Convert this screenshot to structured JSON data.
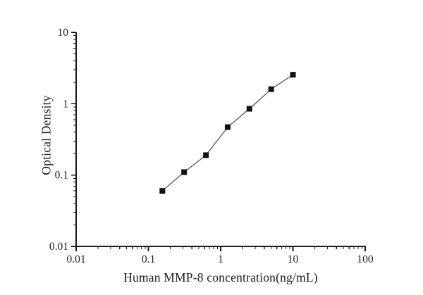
{
  "figure": {
    "background": "#ffffff",
    "text_color": "#1a1a1a"
  },
  "chart_data": {
    "type": "line",
    "x": [
      0.156,
      0.312,
      0.625,
      1.25,
      2.5,
      5,
      10
    ],
    "values": [
      0.06,
      0.11,
      0.19,
      0.47,
      0.85,
      1.6,
      2.55
    ],
    "xlabel": "Human MMP-8 concentration(ng/mL)",
    "ylabel": "Optical Density",
    "xlim": [
      0.01,
      100
    ],
    "ylim": [
      0.01,
      10
    ],
    "xscale": "log",
    "yscale": "log",
    "x_tick_labels": [
      "0.01",
      "0.1",
      "1",
      "10",
      "100"
    ],
    "y_tick_labels": [
      "0.01",
      "0.1",
      "1",
      "10"
    ],
    "grid": false,
    "legend": false,
    "marker": "filled-square",
    "colors": {
      "marker": "#111111",
      "line": "#4d4d4d",
      "axis": "#1a1a1a",
      "tick_label": "#1a1a1a"
    }
  }
}
